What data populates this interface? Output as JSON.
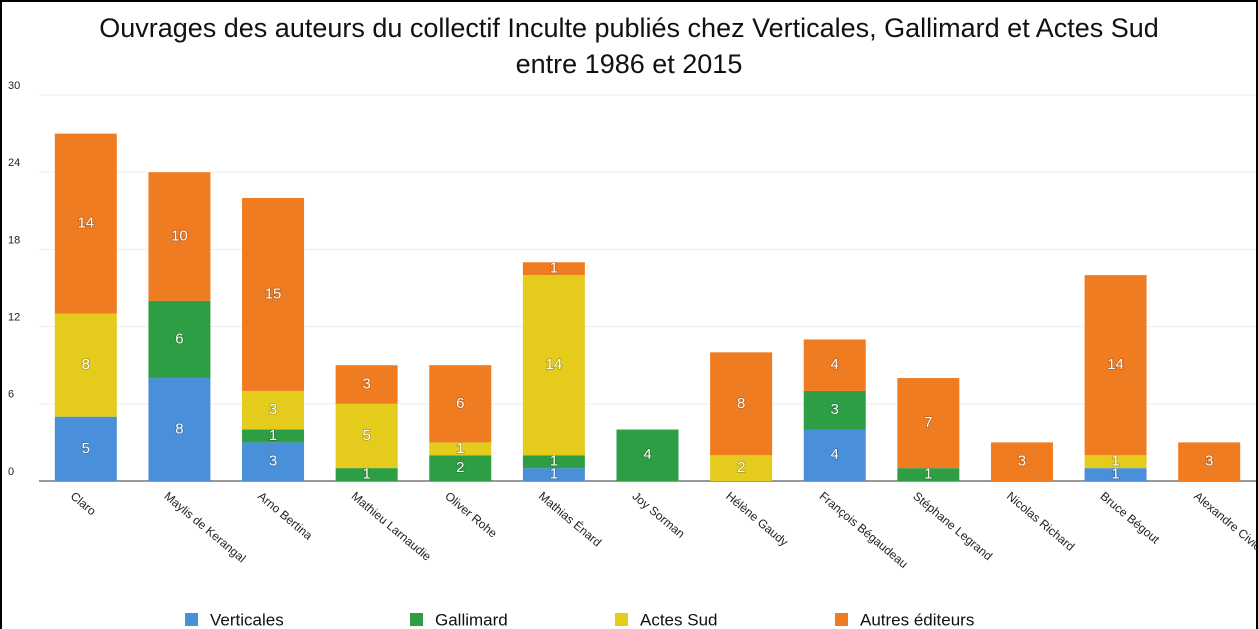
{
  "chart_data": {
    "type": "stacked_bar",
    "title": [
      "Ouvrages des auteurs du collectif Inculte publiés chez Verticales, Gallimard et Actes Sud",
      "entre 1986 et 2015"
    ],
    "categories": [
      "Claro",
      "Maylis de Kerangal",
      "Arno Bertina",
      "Mathieu Larnaudie",
      "Oliver Rohe",
      "Mathias Énard",
      "Joy Sorman",
      "Hélène Gaudy",
      "François Bégaudeau",
      "Stéphane Legrand",
      "Nicolas Richard",
      "Bruce Bégout",
      "Alexandre Civico"
    ],
    "series": [
      {
        "name": "Verticales",
        "color": "#4a8fd9",
        "values": [
          5,
          8,
          3,
          0,
          0,
          1,
          0,
          0,
          4,
          0,
          0,
          1,
          0
        ]
      },
      {
        "name": "Gallimard",
        "color": "#2e9e45",
        "values": [
          0,
          6,
          1,
          1,
          2,
          1,
          4,
          0,
          3,
          1,
          0,
          0,
          0
        ]
      },
      {
        "name": "Actes Sud",
        "color": "#e4cb1c",
        "values": [
          8,
          0,
          3,
          5,
          1,
          14,
          0,
          2,
          0,
          0,
          0,
          1,
          0
        ]
      },
      {
        "name": "Autres éditeurs",
        "color": "#f07c22",
        "values": [
          14,
          10,
          15,
          3,
          6,
          1,
          0,
          8,
          4,
          7,
          3,
          14,
          3
        ]
      }
    ],
    "ylim": [
      0,
      30
    ],
    "yticks": [
      0,
      6,
      12,
      18,
      24,
      30
    ],
    "grid": true
  }
}
